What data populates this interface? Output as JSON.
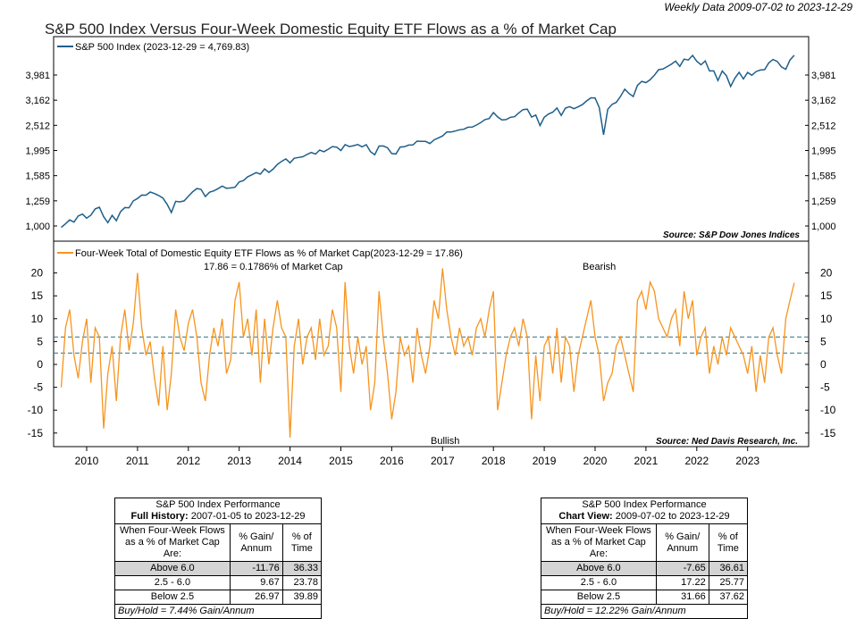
{
  "header": {
    "date_range": "Weekly Data 2009-07-02 to 2023-12-29",
    "title": "S&P 500 Index Versus Four-Week Domestic Equity ETF Flows as a % of Market Cap"
  },
  "colors": {
    "sp500": "#1f5f8b",
    "flows": "#f7941d",
    "dashed": "#2e6e80"
  },
  "chart_data": [
    {
      "type": "line",
      "scale": "log",
      "legend": "S&P 500 Index (2023-12-29 = 4,769.83)",
      "source": "Source:   S&P Dow Jones Indices",
      "yticks": [
        1000,
        1259,
        1585,
        1995,
        2512,
        3162,
        3981
      ],
      "ytick_labels": [
        "1,000",
        "1,259",
        "1,585",
        "1,995",
        "2,512",
        "3,162",
        "3,981"
      ],
      "start": "2009-07",
      "frequency": "monthly",
      "values": [
        987,
        1020,
        1057,
        1036,
        1096,
        1115,
        1074,
        1104,
        1169,
        1187,
        1089,
        1031,
        1102,
        1049,
        1141,
        1183,
        1181,
        1258,
        1286,
        1327,
        1326,
        1364,
        1345,
        1321,
        1292,
        1219,
        1131,
        1253,
        1247,
        1258,
        1312,
        1366,
        1408,
        1398,
        1310,
        1362,
        1379,
        1407,
        1441,
        1412,
        1416,
        1426,
        1498,
        1515,
        1569,
        1598,
        1631,
        1606,
        1686,
        1633,
        1682,
        1757,
        1806,
        1848,
        1783,
        1859,
        1872,
        1884,
        1924,
        1960,
        1931,
        2003,
        1972,
        2018,
        2068,
        2059,
        1995,
        2105,
        2068,
        2086,
        2107,
        2063,
        2104,
        1972,
        1920,
        2079,
        2080,
        2044,
        1940,
        1932,
        2060,
        2065,
        2097,
        2099,
        2174,
        2171,
        2168,
        2126,
        2199,
        2239,
        2279,
        2364,
        2363,
        2384,
        2412,
        2423,
        2470,
        2472,
        2519,
        2575,
        2648,
        2674,
        2824,
        2714,
        2641,
        2648,
        2705,
        2718,
        2816,
        2902,
        2914,
        2712,
        2760,
        2507,
        2704,
        2784,
        2834,
        2946,
        2752,
        2942,
        2980,
        2926,
        2977,
        3038,
        3141,
        3231,
        3226,
        2954,
        2304,
        2912,
        3044,
        3100,
        3271,
        3500,
        3363,
        3270,
        3622,
        3756,
        3714,
        3811,
        3973,
        4181,
        4204,
        4298,
        4395,
        4523,
        4308,
        4605,
        4567,
        4766,
        4516,
        4374,
        4530,
        4132,
        4132,
        3785,
        4130,
        3955,
        3586,
        3872,
        4080,
        3840,
        4077,
        3970,
        4109,
        4169,
        4180,
        4450,
        4589,
        4508,
        4288,
        4194,
        4568,
        4770
      ]
    },
    {
      "type": "line",
      "legend": "Four-Week Total of Domestic Equity ETF Flows as % of Market Cap(2023-12-29 = 17.86)",
      "note": "17.86 = 0.1786% of Market Cap",
      "bearish": "Bearish",
      "bullish": "Bullish",
      "source": "Source:   Ned Davis Research, Inc.",
      "ylim": [
        -17,
        23
      ],
      "yticks": [
        -15,
        -10,
        -5,
        0,
        5,
        10,
        15,
        20
      ],
      "thresholds": [
        6.0,
        2.5
      ],
      "start": "2009-07",
      "frequency": "monthly",
      "values": [
        -5,
        8,
        12,
        2,
        -3,
        5,
        10,
        -4,
        8,
        6,
        -14,
        -2,
        4,
        -8,
        6,
        12,
        3,
        9,
        20,
        8,
        2,
        5,
        -3,
        -9,
        4,
        -10,
        -2,
        12,
        6,
        3,
        9,
        12,
        6,
        -4,
        -8,
        2,
        8,
        4,
        10,
        -2,
        1,
        14,
        18,
        6,
        10,
        2,
        12,
        -4,
        10,
        0,
        8,
        14,
        8,
        6,
        -16,
        4,
        10,
        0,
        6,
        8,
        1,
        10,
        2,
        4,
        12,
        8,
        -6,
        18,
        4,
        -2,
        6,
        0,
        4,
        -10,
        -4,
        16,
        6,
        -2,
        -12,
        -6,
        6,
        2,
        4,
        -4,
        8,
        2,
        -2,
        4,
        14,
        10,
        21,
        12,
        6,
        2,
        8,
        4,
        6,
        2,
        8,
        10,
        6,
        12,
        16,
        -10,
        -4,
        2,
        6,
        8,
        4,
        10,
        6,
        -12,
        2,
        -8,
        4,
        6,
        -2,
        8,
        -4,
        6,
        4,
        -6,
        2,
        6,
        10,
        14,
        6,
        2,
        -8,
        -4,
        -2,
        4,
        6,
        2,
        -2,
        -6,
        14,
        16,
        12,
        18,
        16,
        10,
        8,
        6,
        10,
        12,
        4,
        16,
        10,
        14,
        2,
        6,
        8,
        -2,
        4,
        0,
        6,
        2,
        8,
        6,
        4,
        2,
        -2,
        4,
        -6,
        2,
        -4,
        6,
        8,
        2,
        -2,
        10,
        14,
        17.86
      ]
    }
  ],
  "xticks": [
    "2010",
    "2011",
    "2012",
    "2013",
    "2014",
    "2015",
    "2016",
    "2017",
    "2018",
    "2019",
    "2020",
    "2021",
    "2022",
    "2023"
  ],
  "tables": [
    {
      "title": "S&P 500 Index Performance",
      "sub_label": "Full History:",
      "sub_range": "2007-01-05 to 2023-12-29",
      "h1": "When Four-Week Flows as a % of Market Cap Are:",
      "h2": "% Gain/ Annum",
      "h3": "% of Time",
      "rows": [
        [
          "Above 6.0",
          "-11.76",
          "36.33"
        ],
        [
          "2.5 - 6.0",
          "9.67",
          "23.78"
        ],
        [
          "Below 2.5",
          "26.97",
          "39.89"
        ]
      ],
      "foot": "Buy/Hold = 7.44% Gain/Annum"
    },
    {
      "title": "S&P 500 Index Performance",
      "sub_label": "Chart View:",
      "sub_range": "2009-07-02 to 2023-12-29",
      "h1": "When Four-Week Flows as a % of Market Cap Are:",
      "h2": "% Gain/ Annum",
      "h3": "% of Time",
      "rows": [
        [
          "Above 6.0",
          "-7.65",
          "36.61"
        ],
        [
          "2.5 - 6.0",
          "17.22",
          "25.77"
        ],
        [
          "Below 2.5",
          "31.66",
          "37.62"
        ]
      ],
      "foot": "Buy/Hold = 12.22% Gain/Annum"
    }
  ]
}
